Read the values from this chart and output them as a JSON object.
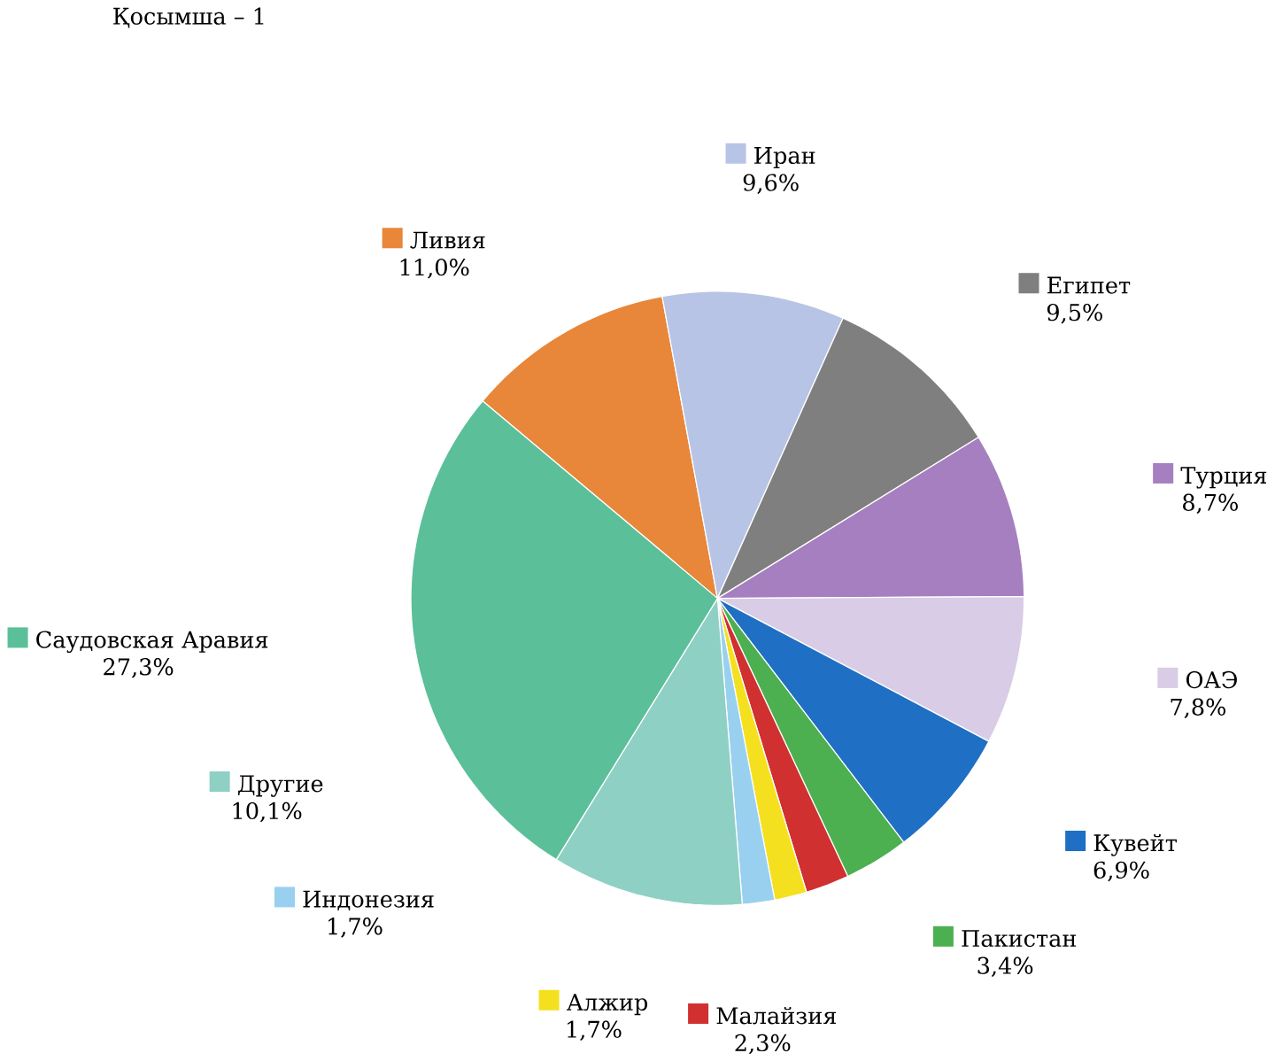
{
  "chart_data": {
    "type": "pie",
    "title": "Қосымша – 1",
    "legend": "top left",
    "categories": [
      "Ливия",
      "Иран",
      "Египет",
      "Турция",
      "ОАЭ",
      "Кувейт",
      "Пакистан",
      "Малайзия",
      "Алжир",
      "Индонезия",
      "Другие",
      "Саудовская Аравия"
    ],
    "values": [
      11.0,
      9.6,
      9.5,
      8.7,
      7.8,
      6.9,
      3.4,
      2.3,
      1.7,
      1.7,
      10.1,
      27.3
    ],
    "value_labels": [
      "11,0%",
      "9,6%",
      "9,5%",
      "8,7%",
      "7,8%",
      "6,9%",
      "3,4%",
      "2,3%",
      "1,7%",
      "1,7%",
      "10,1%",
      "27,3%"
    ],
    "colors": [
      "#e8863a",
      "#b8c4e6",
      "#7f7f7f",
      "#a57fc0",
      "#d9cce6",
      "#1f6fc4",
      "#4caf50",
      "#d03030",
      "#f5e020",
      "#99d0f0",
      "#8fd0c4",
      "#5bbf9a"
    ]
  }
}
